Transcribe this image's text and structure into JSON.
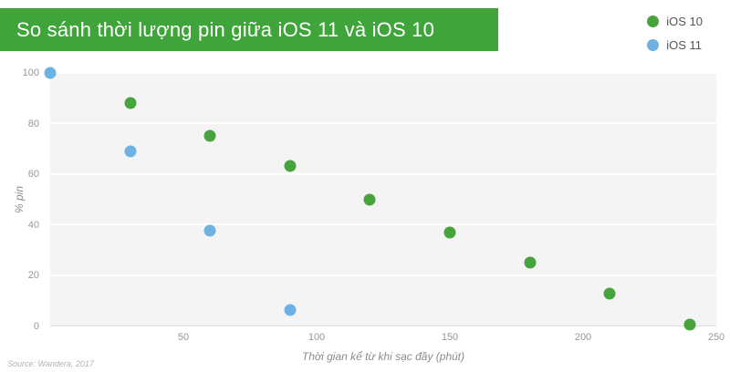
{
  "source": "Source: Wandera, 2017",
  "colors": {
    "banner": "#3fa43a",
    "plot_background": "#f4f4f4",
    "gridline": "#ffffff"
  },
  "chart_data": {
    "type": "scatter",
    "title": "So sánh thời lượng pin giữa iOS 11 và iOS 10",
    "xlabel": "Thời gian kể từ khi sạc đầy (phút)",
    "ylabel": "% pin",
    "xlim": [
      0,
      250
    ],
    "ylim": [
      0,
      100
    ],
    "x_ticks": [
      50,
      100,
      150,
      200,
      250
    ],
    "y_ticks": [
      0,
      20,
      40,
      60,
      80,
      100
    ],
    "grid": "horizontal",
    "legend_position": "top-right",
    "series": [
      {
        "name": "iOS 10",
        "color": "#47a33c",
        "points": [
          [
            30,
            88
          ],
          [
            60,
            75
          ],
          [
            90,
            63
          ],
          [
            120,
            50
          ],
          [
            150,
            37
          ],
          [
            180,
            25
          ],
          [
            210,
            12.5
          ],
          [
            240,
            0.5
          ]
        ]
      },
      {
        "name": "iOS 11",
        "color": "#6fb1e2",
        "points": [
          [
            0,
            100
          ],
          [
            30,
            69
          ],
          [
            60,
            37.5
          ],
          [
            90,
            6
          ]
        ]
      }
    ]
  }
}
